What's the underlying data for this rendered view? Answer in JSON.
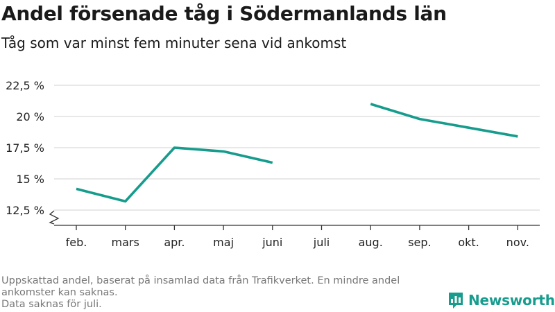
{
  "title": "Andel försenade tåg i Södermanlands län",
  "subtitle": "Tåg som var minst fem minuter sena vid ankomst",
  "footnotes": [
    "Uppskattad andel, baserat på insamlad data från Trafikverket. En mindre andel ankomster kan saknas.",
    "Data saknas för juli."
  ],
  "brand": {
    "name": "Newsworthy",
    "icon": "newsworthy-logo-icon"
  },
  "colors": {
    "line": "#169c8d",
    "grid": "#d9d9d9",
    "axis": "#333333",
    "brand": "#179c8e"
  },
  "chart_data": {
    "type": "line",
    "title": "Andel försenade tåg i Södermanlands län",
    "subtitle": "Tåg som var minst fem minuter sena vid ankomst",
    "categories": [
      "feb.",
      "mars",
      "apr.",
      "maj",
      "juni",
      "juli",
      "aug.",
      "sep.",
      "okt.",
      "nov."
    ],
    "series": [
      {
        "values": [
          14.2,
          13.2,
          17.5,
          17.2,
          16.3,
          null,
          21.0,
          19.8,
          19.1,
          18.4
        ]
      }
    ],
    "yticks": [
      12.5,
      15,
      17.5,
      20,
      22.5
    ],
    "ytick_labels": [
      "12,5 %",
      "15 %",
      "17,5 %",
      "20 %",
      "22,5 %"
    ],
    "ylim": [
      12.5,
      22.5
    ],
    "axis_break": true,
    "grid": true,
    "legend": "none"
  }
}
